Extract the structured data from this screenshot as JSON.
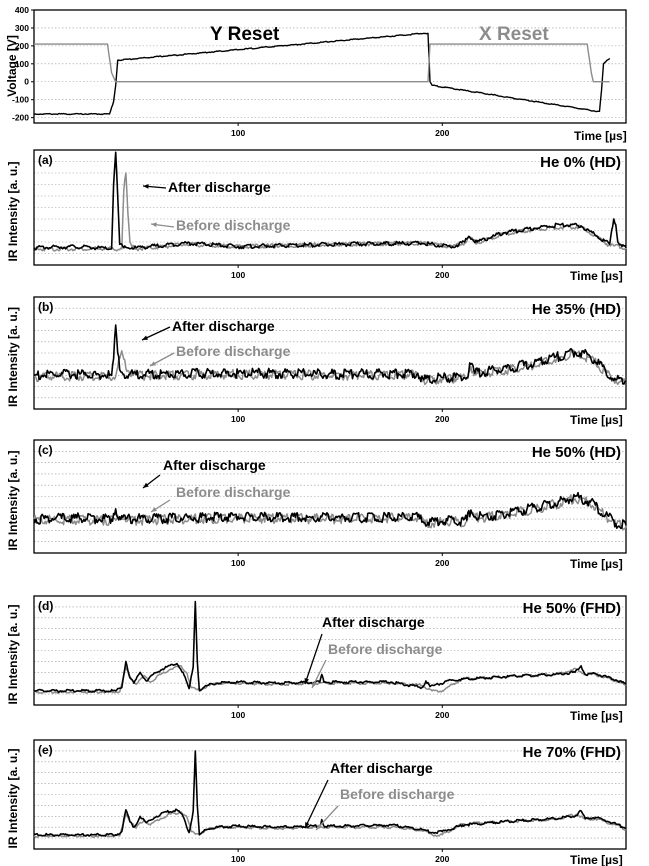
{
  "colors": {
    "after": "#000000",
    "before": "#8c8c8c",
    "grid": "#9a9a9a"
  },
  "chart_data": [
    {
      "id": "voltage",
      "type": "line",
      "xlabel": "Time [µs]",
      "ylabel": "Voltage [V]",
      "xlim": [
        0,
        290
      ],
      "ylim": [
        -230,
        400
      ],
      "yticks": [
        -200,
        -100,
        0,
        100,
        200,
        300,
        400
      ],
      "xticks": [
        100,
        200
      ],
      "reset_labels": {
        "y_reset": "Y Reset",
        "x_reset": "X Reset"
      },
      "series": [
        {
          "color": "#000000",
          "x": [
            0,
            37,
            39,
            40,
            41,
            191,
            193,
            194,
            195,
            276,
            277,
            278,
            279,
            282
          ],
          "y": [
            -180,
            -180,
            -110,
            -20,
            120,
            270,
            270,
            0,
            -20,
            -165,
            -165,
            -50,
            100,
            130
          ]
        },
        {
          "color": "#8c8c8c",
          "x": [
            0,
            36,
            38,
            40,
            191,
            193,
            194,
            271,
            273,
            274,
            282
          ],
          "y": [
            210,
            210,
            50,
            0,
            0,
            0,
            210,
            210,
            50,
            0,
            0
          ]
        }
      ]
    },
    {
      "id": "a",
      "type": "line",
      "panel_label": "(a)",
      "condition": "He 0% (HD)",
      "xlabel": "Time [µs]",
      "ylabel": "IR Intensity [a. u.]",
      "xlim": [
        0,
        290
      ],
      "ylim": [
        0,
        10
      ],
      "xticks": [
        100,
        200
      ],
      "annotations": {
        "after": "After discharge",
        "before": "Before discharge"
      },
      "series": [
        {
          "name": "After discharge",
          "color": "#000000",
          "x": [
            0,
            20,
            38,
            39,
            40,
            41,
            42,
            44,
            50,
            75,
            100,
            150,
            190,
            205,
            211,
            213,
            217,
            230,
            245,
            258,
            268,
            276,
            282,
            284,
            285,
            286,
            290
          ],
          "y": [
            1.5,
            1.6,
            1.4,
            7.0,
            9.8,
            6.0,
            1.8,
            1.5,
            1.5,
            1.9,
            1.6,
            1.8,
            1.9,
            1.6,
            2.0,
            2.5,
            2.0,
            2.8,
            3.2,
            3.5,
            3.4,
            2.5,
            1.8,
            4.0,
            3.5,
            2.0,
            1.5
          ]
        },
        {
          "name": "Before discharge",
          "color": "#8c8c8c",
          "x": [
            0,
            43,
            44,
            45,
            46,
            47,
            48,
            50,
            75,
            100,
            150,
            190,
            205,
            211,
            213,
            217,
            230,
            245,
            258,
            268,
            276,
            282,
            290
          ],
          "y": [
            1.4,
            1.4,
            6.5,
            8.0,
            4.5,
            2.0,
            1.6,
            1.4,
            1.8,
            1.6,
            1.8,
            1.9,
            1.6,
            1.9,
            2.4,
            1.9,
            2.7,
            3.1,
            3.3,
            3.3,
            2.4,
            1.7,
            1.5
          ]
        }
      ]
    },
    {
      "id": "b",
      "type": "line",
      "panel_label": "(b)",
      "condition": "He 35% (HD)",
      "xlabel": "Time [µs]",
      "ylabel": "IR Intensity [a. u.]",
      "xlim": [
        0,
        290
      ],
      "ylim": [
        0,
        10
      ],
      "xticks": [
        100,
        200
      ],
      "annotations": {
        "after": "After discharge",
        "before": "Before discharge"
      },
      "series": [
        {
          "name": "After discharge",
          "color": "#000000",
          "x": [
            0,
            20,
            38,
            39,
            40,
            41,
            42,
            44,
            50,
            100,
            150,
            188,
            191,
            200,
            212,
            214,
            216,
            220,
            240,
            255,
            265,
            272,
            280,
            285,
            290
          ],
          "y": [
            3.0,
            3.1,
            3.0,
            4.5,
            7.5,
            5.0,
            3.5,
            3.1,
            3.1,
            3.2,
            3.1,
            3.2,
            2.6,
            2.8,
            2.8,
            4.0,
            3.2,
            3.3,
            3.9,
            4.6,
            5.1,
            4.8,
            3.4,
            2.6,
            2.5
          ]
        },
        {
          "name": "Before discharge",
          "color": "#8c8c8c",
          "x": [
            0,
            40,
            42,
            43,
            45,
            50,
            100,
            150,
            188,
            191,
            200,
            212,
            214,
            216,
            220,
            240,
            255,
            265,
            272,
            280,
            285,
            290
          ],
          "y": [
            2.9,
            2.9,
            4.5,
            5.2,
            3.6,
            3.0,
            3.1,
            3.0,
            3.1,
            2.5,
            2.7,
            2.7,
            3.8,
            3.1,
            3.2,
            3.7,
            4.4,
            4.9,
            4.6,
            3.3,
            2.5,
            2.4
          ]
        }
      ]
    },
    {
      "id": "c",
      "type": "line",
      "panel_label": "(c)",
      "condition": "He 50% (HD)",
      "xlabel": "Time [µs]",
      "ylabel": "IR Intensity [a. u.]",
      "xlim": [
        0,
        290
      ],
      "ylim": [
        0,
        10
      ],
      "xticks": [
        100,
        200
      ],
      "annotations": {
        "after": "After discharge",
        "before": "Before discharge"
      },
      "series": [
        {
          "name": "After discharge",
          "color": "#000000",
          "x": [
            0,
            20,
            38,
            39,
            40,
            42,
            45,
            100,
            150,
            188,
            191,
            200,
            212,
            214,
            216,
            220,
            240,
            255,
            265,
            272,
            280,
            285,
            290
          ],
          "y": [
            3.0,
            3.1,
            3.0,
            3.5,
            3.9,
            3.2,
            3.0,
            3.2,
            3.1,
            3.2,
            2.7,
            2.8,
            2.9,
            3.8,
            3.2,
            3.2,
            3.8,
            4.4,
            5.0,
            4.6,
            3.4,
            2.6,
            2.5
          ]
        },
        {
          "name": "Before discharge",
          "color": "#8c8c8c",
          "x": [
            0,
            40,
            43,
            46,
            100,
            150,
            188,
            191,
            200,
            212,
            214,
            216,
            220,
            240,
            255,
            265,
            272,
            280,
            285,
            290
          ],
          "y": [
            2.9,
            2.9,
            3.3,
            2.9,
            3.1,
            3.0,
            3.1,
            2.6,
            2.7,
            2.8,
            3.6,
            3.1,
            3.1,
            3.7,
            4.3,
            4.8,
            4.5,
            3.3,
            2.5,
            2.4
          ]
        }
      ]
    },
    {
      "id": "d",
      "type": "line",
      "panel_label": "(d)",
      "condition": "He 50% (FHD)",
      "xlabel": "Time [µs]",
      "ylabel": "IR Intensity [a. u.]",
      "xlim": [
        0,
        290
      ],
      "ylim": [
        0,
        10
      ],
      "xticks": [
        100,
        200
      ],
      "annotations": {
        "after": "After discharge",
        "before": "Before discharge"
      },
      "series": [
        {
          "name": "After discharge",
          "color": "#000000",
          "x": [
            0,
            40,
            43,
            45,
            47,
            49,
            52,
            55,
            60,
            65,
            70,
            73,
            76,
            78,
            79,
            80,
            81,
            83,
            85,
            90,
            100,
            120,
            140,
            141,
            142,
            150,
            175,
            190,
            192,
            194,
            196,
            205,
            230,
            255,
            265,
            268,
            270,
            275,
            285,
            290
          ],
          "y": [
            1.3,
            1.3,
            1.6,
            4.0,
            2.5,
            2.0,
            3.0,
            2.2,
            3.0,
            3.5,
            3.8,
            3.0,
            1.5,
            3.5,
            9.5,
            4.0,
            1.3,
            1.6,
            1.8,
            2.0,
            2.1,
            2.0,
            2.1,
            2.8,
            2.1,
            2.1,
            2.1,
            1.6,
            2.2,
            1.7,
            1.8,
            2.3,
            2.6,
            2.8,
            3.0,
            3.6,
            2.8,
            2.9,
            2.3,
            1.9
          ]
        },
        {
          "name": "Before discharge",
          "color": "#8c8c8c",
          "x": [
            0,
            42,
            45,
            48,
            50,
            54,
            57,
            62,
            67,
            72,
            75,
            77,
            80,
            83,
            85,
            90,
            100,
            120,
            140,
            150,
            175,
            190,
            195,
            200,
            210,
            230,
            255,
            266,
            270,
            275,
            285,
            290
          ],
          "y": [
            1.2,
            1.2,
            3.4,
            2.3,
            1.9,
            2.7,
            2.1,
            2.8,
            3.3,
            3.6,
            2.9,
            1.6,
            1.4,
            1.5,
            1.8,
            2.0,
            2.0,
            1.9,
            2.0,
            2.0,
            2.0,
            1.8,
            1.3,
            1.3,
            2.4,
            2.6,
            2.8,
            3.3,
            2.8,
            2.8,
            2.2,
            1.8
          ]
        }
      ]
    },
    {
      "id": "e",
      "type": "line",
      "panel_label": "(e)",
      "condition": "He 70% (FHD)",
      "xlabel": "Time [µs]",
      "ylabel": "IR Intensity [a. u.]",
      "xlim": [
        0,
        290
      ],
      "ylim": [
        0,
        10
      ],
      "xticks": [
        100,
        200
      ],
      "annotations": {
        "after": "After discharge",
        "before": "Before discharge"
      },
      "series": [
        {
          "name": "After discharge",
          "color": "#000000",
          "x": [
            0,
            40,
            43,
            45,
            47,
            49,
            52,
            55,
            60,
            65,
            70,
            73,
            76,
            78,
            79,
            80,
            81,
            83,
            85,
            90,
            100,
            120,
            140,
            141,
            142,
            150,
            175,
            190,
            195,
            200,
            210,
            230,
            255,
            265,
            268,
            270,
            275,
            285,
            290
          ],
          "y": [
            1.3,
            1.3,
            1.6,
            3.6,
            2.5,
            2.0,
            3.0,
            2.4,
            3.0,
            3.4,
            3.6,
            3.0,
            1.5,
            3.5,
            9.0,
            4.0,
            1.3,
            1.6,
            1.8,
            2.0,
            2.1,
            2.0,
            2.1,
            2.7,
            2.1,
            2.1,
            2.2,
            1.8,
            1.5,
            1.6,
            2.2,
            2.5,
            2.8,
            3.0,
            3.5,
            2.8,
            2.9,
            2.3,
            1.9
          ]
        },
        {
          "name": "Before discharge",
          "color": "#8c8c8c",
          "x": [
            0,
            42,
            45,
            48,
            50,
            54,
            57,
            62,
            67,
            72,
            75,
            77,
            80,
            83,
            85,
            90,
            100,
            120,
            140,
            150,
            175,
            190,
            195,
            200,
            210,
            230,
            255,
            266,
            270,
            275,
            285,
            290
          ],
          "y": [
            1.2,
            1.2,
            3.2,
            2.3,
            1.9,
            2.7,
            2.2,
            2.8,
            3.2,
            3.4,
            2.9,
            1.6,
            1.4,
            1.5,
            1.8,
            2.0,
            2.0,
            1.9,
            2.0,
            2.0,
            2.0,
            1.7,
            1.3,
            1.3,
            2.3,
            2.5,
            2.7,
            3.2,
            2.7,
            2.8,
            2.2,
            1.8
          ]
        }
      ]
    }
  ]
}
